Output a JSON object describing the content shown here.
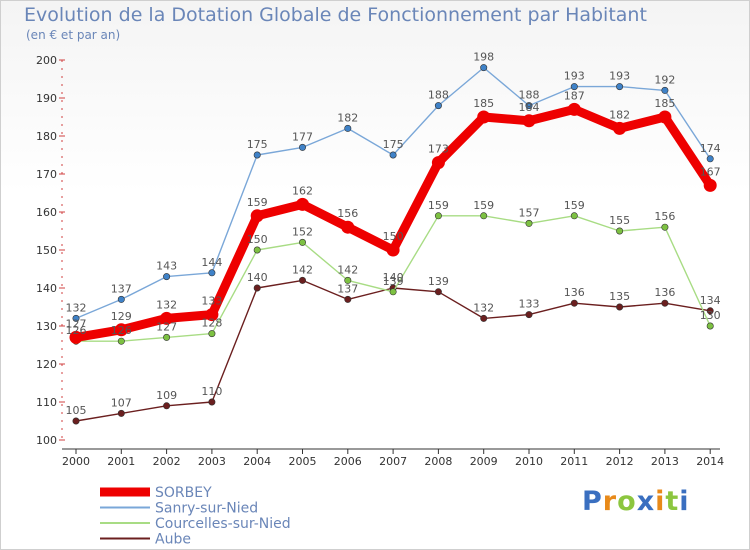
{
  "title": "Evolution de la Dotation Globale de Fonctionnement par Habitant",
  "subtitle": "(en € et par an)",
  "logo": {
    "text": "Proxiti",
    "letters": [
      {
        "ch": "P",
        "color": "#3a6fc0"
      },
      {
        "ch": "r",
        "color": "#e88a1a"
      },
      {
        "ch": "o",
        "color": "#8cc63f"
      },
      {
        "ch": "x",
        "color": "#3a6fc0"
      },
      {
        "ch": "i",
        "color": "#e88a1a"
      },
      {
        "ch": "t",
        "color": "#8cc63f"
      },
      {
        "ch": "i",
        "color": "#3a6fc0"
      }
    ]
  },
  "chart_data": {
    "type": "line",
    "title": "Evolution de la Dotation Globale de Fonctionnement par Habitant",
    "subtitle": "(en € et par an)",
    "xlabel": "",
    "ylabel": "",
    "ylim": [
      100,
      200
    ],
    "yticks": [
      100,
      110,
      120,
      130,
      140,
      150,
      160,
      170,
      180,
      190,
      200
    ],
    "grid": false,
    "legend_position": "bottom-left",
    "categories": [
      "2000",
      "2001",
      "2002",
      "2003",
      "2004",
      "2005",
      "2006",
      "2007",
      "2008",
      "2009",
      "2010",
      "2011",
      "2012",
      "2013",
      "2014"
    ],
    "series": [
      {
        "name": "Aube",
        "color": "#6b1f1f",
        "marker": "#6b1f1f",
        "values": [
          105,
          107,
          109,
          110,
          140,
          142,
          137,
          140,
          139,
          132,
          133,
          136,
          135,
          136,
          134
        ]
      },
      {
        "name": "Courcelles-sur-Nied",
        "color": "#a8dc84",
        "marker": "#7dc142",
        "values": [
          126,
          126,
          127,
          128,
          150,
          152,
          142,
          139,
          159,
          159,
          157,
          159,
          155,
          156,
          130
        ]
      },
      {
        "name": "Sanry-sur-Nied",
        "color": "#7aa7d8",
        "marker": "#3f82c8",
        "values": [
          132,
          137,
          143,
          144,
          175,
          177,
          182,
          175,
          188,
          198,
          188,
          193,
          193,
          192,
          174
        ]
      },
      {
        "name": "SORBEY",
        "color": "#ee0000",
        "marker": "#ee0000",
        "values": [
          127,
          129,
          132,
          133,
          159,
          162,
          156,
          150,
          173,
          185,
          184,
          187,
          182,
          185,
          167
        ]
      }
    ],
    "legend_order": [
      "SORBEY",
      "Sanry-sur-Nied",
      "Courcelles-sur-Nied",
      "Aube"
    ]
  }
}
